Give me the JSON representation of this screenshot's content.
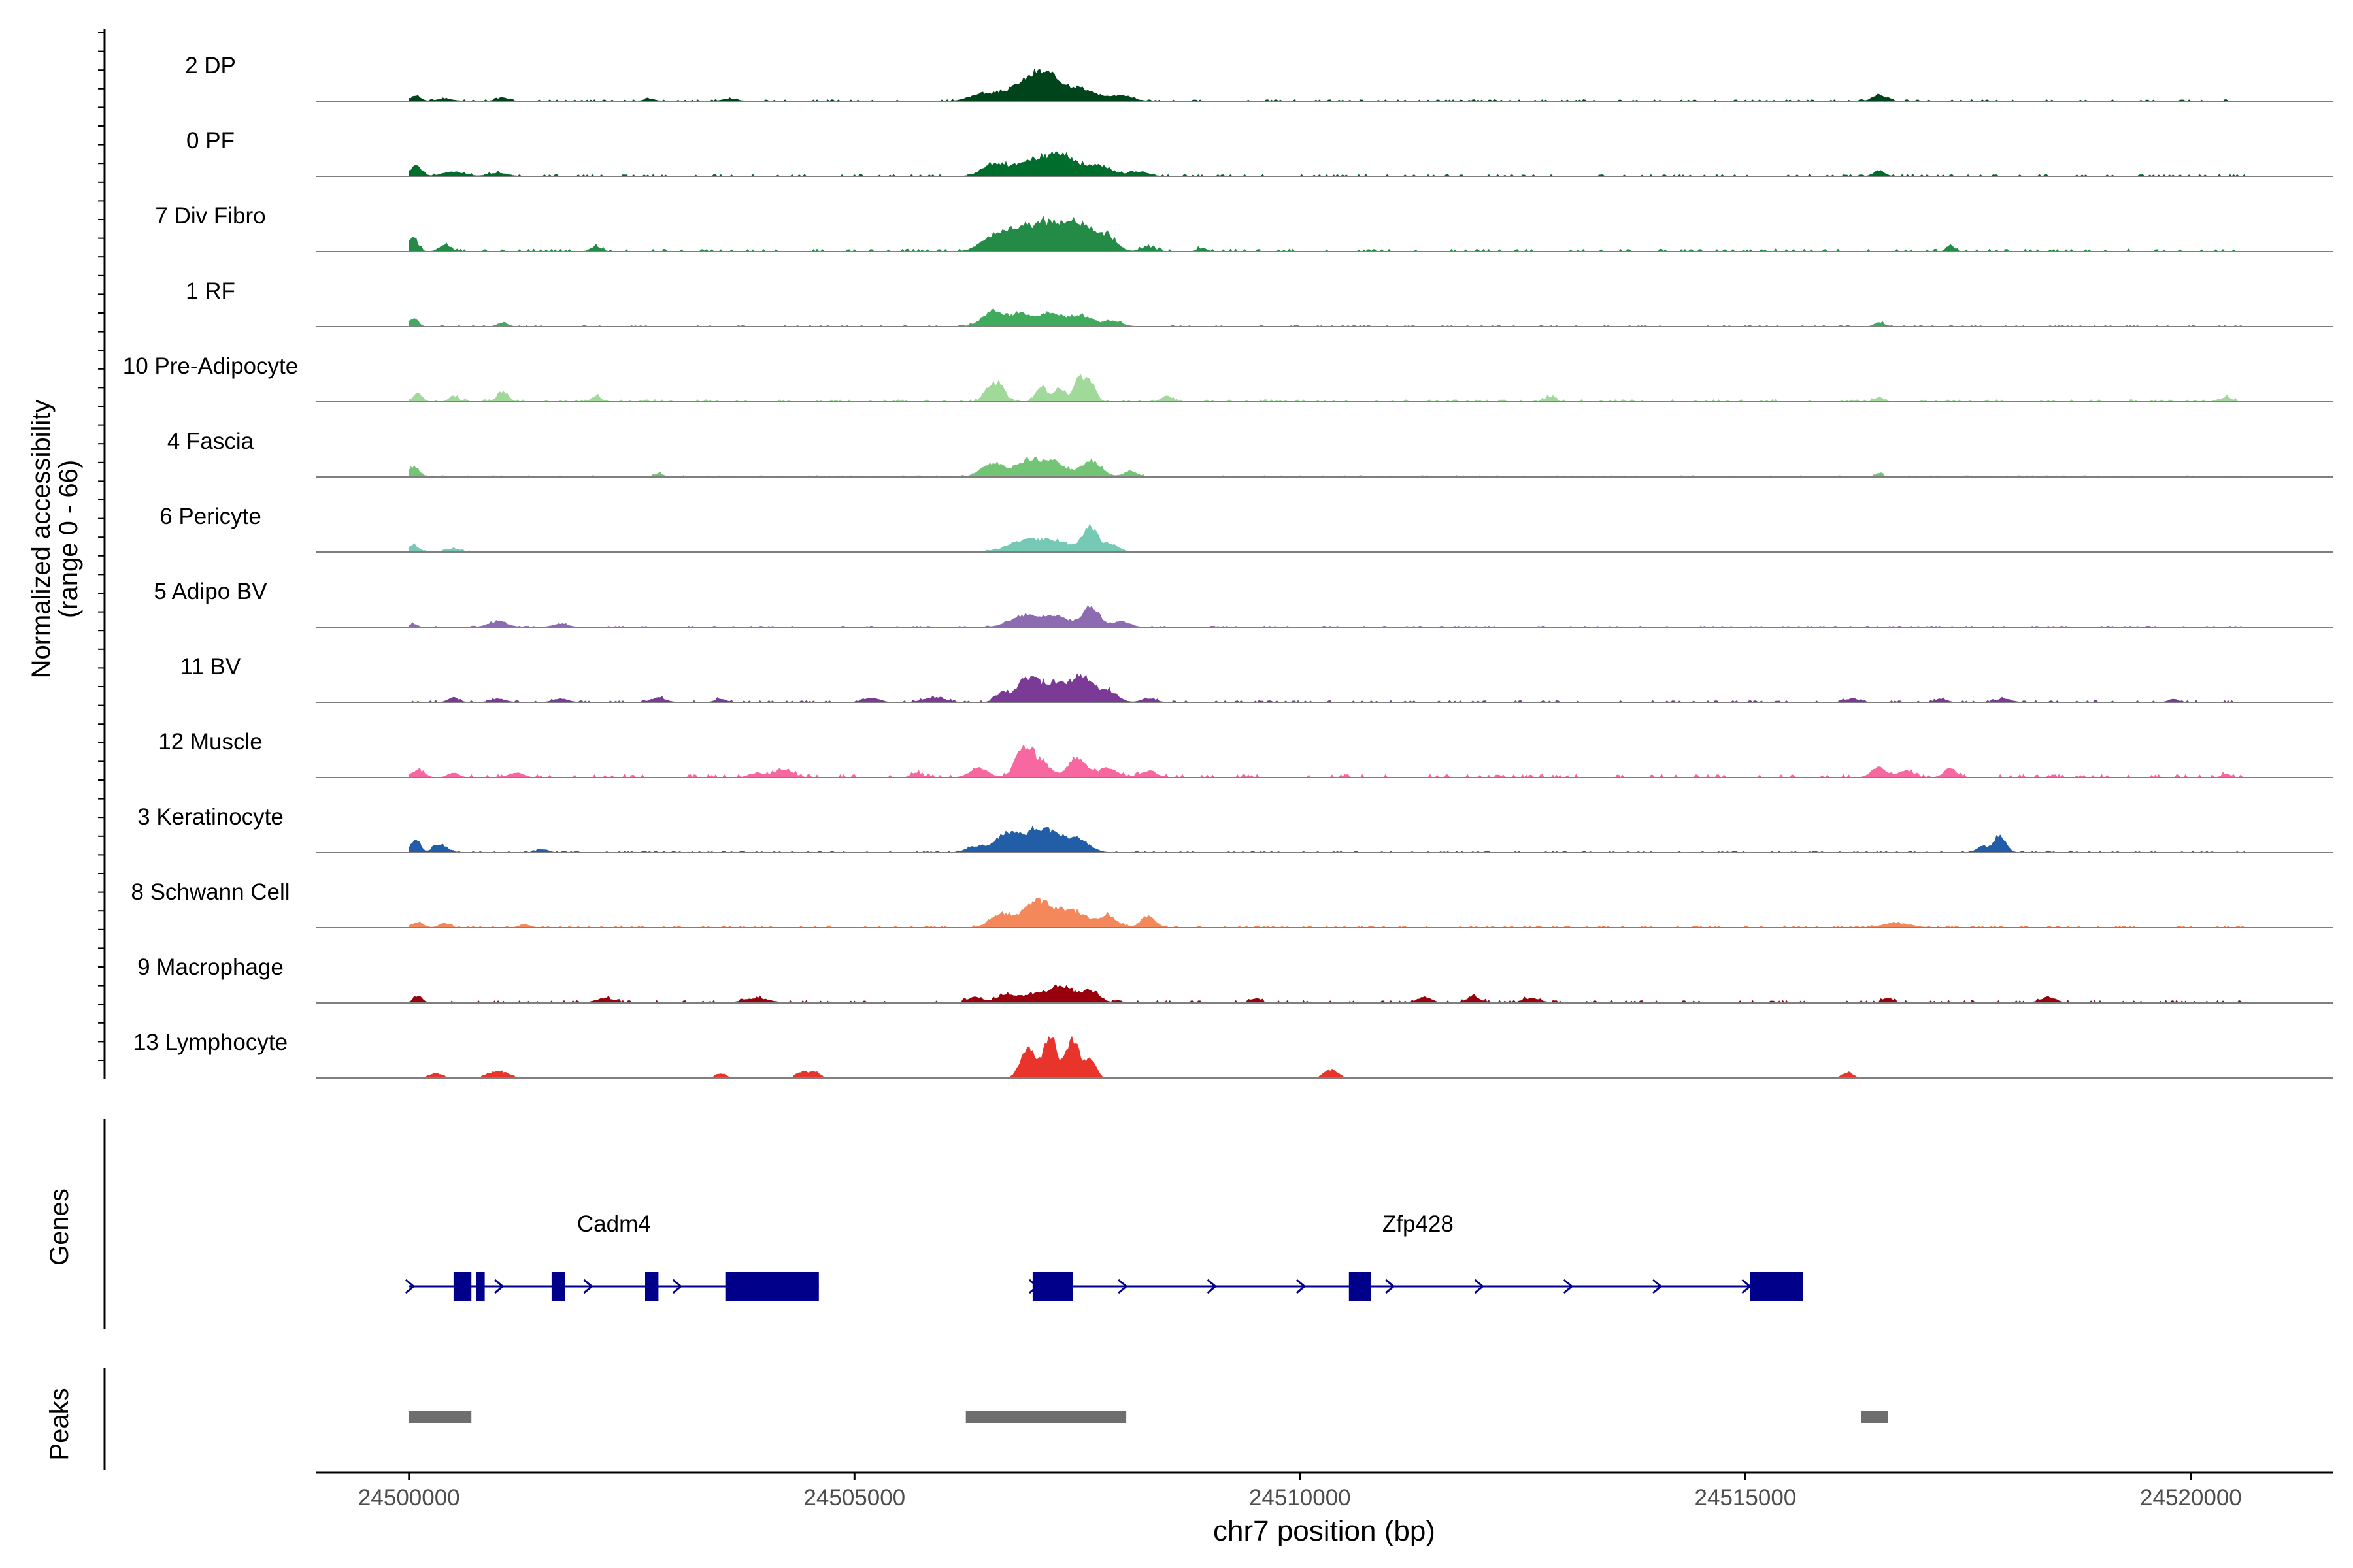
{
  "chart_data": {
    "type": "area",
    "title": "",
    "xlabel": "chr7 position (bp)",
    "ylabel": "Normalized accessibility",
    "ylabel_sub": "(range 0 - 66)",
    "y_range": [
      0,
      66
    ],
    "xlim": [
      24498960,
      24521600
    ],
    "x_ticks": [
      {
        "value": 24500000,
        "label": "24500000"
      },
      {
        "value": 24505000,
        "label": "24505000"
      },
      {
        "value": 24510000,
        "label": "24510000"
      },
      {
        "value": 24515000,
        "label": "24515000"
      },
      {
        "value": 24520000,
        "label": "24520000"
      }
    ],
    "track_labels": {
      "genes": "Genes",
      "peaks": "Peaks"
    },
    "series": [
      {
        "name": "2 DP",
        "color": "#00441b",
        "peaks": [
          [
            24500080,
            50,
            5
          ],
          [
            24500400,
            90,
            2
          ],
          [
            24501050,
            70,
            3
          ],
          [
            24502700,
            60,
            2
          ],
          [
            24503600,
            80,
            2
          ],
          [
            24506400,
            120,
            5
          ],
          [
            24506900,
            250,
            12
          ],
          [
            24507150,
            180,
            18
          ],
          [
            24507550,
            160,
            10
          ],
          [
            24508000,
            120,
            5
          ],
          [
            24516500,
            70,
            6
          ]
        ],
        "noise": 1.2
      },
      {
        "name": "0 PF",
        "color": "#006d2c",
        "peaks": [
          [
            24500080,
            60,
            10
          ],
          [
            24500500,
            120,
            4
          ],
          [
            24501000,
            100,
            3
          ],
          [
            24506550,
            120,
            10
          ],
          [
            24507000,
            220,
            14
          ],
          [
            24507350,
            160,
            14
          ],
          [
            24507750,
            150,
            9
          ],
          [
            24508200,
            100,
            4
          ],
          [
            24516500,
            60,
            5
          ]
        ],
        "noise": 1.5
      },
      {
        "name": "7 Div Fibro",
        "color": "#238b45",
        "peaks": [
          [
            24500050,
            50,
            12
          ],
          [
            24500400,
            60,
            6
          ],
          [
            24502100,
            60,
            4
          ],
          [
            24506550,
            140,
            12
          ],
          [
            24506850,
            160,
            18
          ],
          [
            24507200,
            170,
            24
          ],
          [
            24507550,
            140,
            22
          ],
          [
            24507850,
            100,
            12
          ],
          [
            24508300,
            80,
            4
          ],
          [
            24508900,
            50,
            3
          ],
          [
            24517300,
            40,
            6
          ]
        ],
        "noise": 2
      },
      {
        "name": "1 RF",
        "color": "#41ab5d",
        "peaks": [
          [
            24500050,
            50,
            7
          ],
          [
            24501050,
            60,
            3
          ],
          [
            24506550,
            120,
            13
          ],
          [
            24506850,
            120,
            11
          ],
          [
            24507200,
            140,
            12
          ],
          [
            24507550,
            120,
            10
          ],
          [
            24507900,
            100,
            5
          ],
          [
            24516500,
            50,
            4
          ]
        ],
        "noise": 1.2
      },
      {
        "name": "10 Pre-Adipocyte",
        "color": "#a1d99b",
        "peaks": [
          [
            24500100,
            50,
            7
          ],
          [
            24500500,
            50,
            5
          ],
          [
            24501050,
            60,
            9
          ],
          [
            24502100,
            50,
            5
          ],
          [
            24506500,
            60,
            11
          ],
          [
            24506630,
            60,
            16
          ],
          [
            24507100,
            60,
            14
          ],
          [
            24507300,
            60,
            12
          ],
          [
            24507520,
            60,
            21
          ],
          [
            24507650,
            60,
            16
          ],
          [
            24508500,
            60,
            5
          ],
          [
            24512800,
            60,
            4
          ],
          [
            24516500,
            50,
            4
          ],
          [
            24520400,
            60,
            4
          ]
        ],
        "noise": 1.8
      },
      {
        "name": "4 Fascia",
        "color": "#74c476",
        "peaks": [
          [
            24500050,
            60,
            9
          ],
          [
            24502800,
            50,
            3
          ],
          [
            24506550,
            120,
            12
          ],
          [
            24506950,
            140,
            15
          ],
          [
            24507250,
            120,
            12
          ],
          [
            24507650,
            120,
            14
          ],
          [
            24508100,
            80,
            4
          ],
          [
            24516500,
            40,
            3
          ]
        ],
        "noise": 1.2
      },
      {
        "name": "6 Pericyte",
        "color": "#76c9b5",
        "peaks": [
          [
            24500050,
            60,
            6
          ],
          [
            24500500,
            80,
            3
          ],
          [
            24506900,
            180,
            10
          ],
          [
            24507250,
            160,
            9
          ],
          [
            24507650,
            90,
            22
          ],
          [
            24507900,
            80,
            6
          ]
        ],
        "noise": 0.9
      },
      {
        "name": "5 Adipo BV",
        "color": "#8c6bb1",
        "peaks": [
          [
            24500050,
            40,
            3
          ],
          [
            24501000,
            100,
            5
          ],
          [
            24501700,
            80,
            3
          ],
          [
            24506900,
            150,
            10
          ],
          [
            24507250,
            130,
            10
          ],
          [
            24507650,
            100,
            18
          ],
          [
            24508000,
            90,
            5
          ]
        ],
        "noise": 0.9
      },
      {
        "name": "11 BV",
        "color": "#7a3a96",
        "peaks": [
          [
            24500500,
            60,
            4
          ],
          [
            24501000,
            80,
            3
          ],
          [
            24501700,
            80,
            3
          ],
          [
            24502800,
            80,
            4
          ],
          [
            24503500,
            60,
            3
          ],
          [
            24505200,
            80,
            4
          ],
          [
            24505900,
            120,
            4
          ],
          [
            24506650,
            70,
            8
          ],
          [
            24506950,
            120,
            22
          ],
          [
            24507250,
            120,
            16
          ],
          [
            24507550,
            120,
            22
          ],
          [
            24507850,
            100,
            10
          ],
          [
            24508300,
            80,
            3
          ],
          [
            24516200,
            80,
            3
          ],
          [
            24517200,
            60,
            3
          ],
          [
            24517900,
            80,
            3
          ],
          [
            24519800,
            50,
            3
          ]
        ],
        "noise": 1.4
      },
      {
        "name": "12 Muscle",
        "color": "#f768a1",
        "peaks": [
          [
            24500100,
            70,
            6
          ],
          [
            24500500,
            60,
            4
          ],
          [
            24501200,
            80,
            4
          ],
          [
            24503900,
            80,
            4
          ],
          [
            24504200,
            100,
            7
          ],
          [
            24505700,
            60,
            4
          ],
          [
            24506400,
            100,
            8
          ],
          [
            24506900,
            90,
            26
          ],
          [
            24507100,
            90,
            14
          ],
          [
            24507500,
            110,
            16
          ],
          [
            24507850,
            100,
            8
          ],
          [
            24508300,
            90,
            6
          ],
          [
            24516500,
            80,
            9
          ],
          [
            24516800,
            80,
            6
          ],
          [
            24517300,
            70,
            8
          ],
          [
            24520400,
            50,
            3
          ]
        ],
        "noise": 2.5
      },
      {
        "name": "3 Keratinocyte",
        "color": "#225ea8",
        "peaks": [
          [
            24500070,
            50,
            12
          ],
          [
            24500350,
            80,
            7
          ],
          [
            24501500,
            60,
            3
          ],
          [
            24506350,
            100,
            5
          ],
          [
            24506700,
            130,
            15
          ],
          [
            24507100,
            180,
            22
          ],
          [
            24507500,
            130,
            11
          ],
          [
            24517850,
            70,
            14
          ],
          [
            24517650,
            60,
            5
          ]
        ],
        "noise": 1.2
      },
      {
        "name": "8 Schwann Cell",
        "color": "#f4885a",
        "peaks": [
          [
            24500100,
            60,
            5
          ],
          [
            24500400,
            60,
            4
          ],
          [
            24501300,
            60,
            3
          ],
          [
            24506650,
            120,
            12
          ],
          [
            24507050,
            150,
            24
          ],
          [
            24507450,
            160,
            15
          ],
          [
            24507850,
            100,
            10
          ],
          [
            24508300,
            80,
            10
          ],
          [
            24516700,
            150,
            4
          ]
        ],
        "noise": 1.5
      },
      {
        "name": "9 Macrophage",
        "color": "#99000d",
        "peaks": [
          [
            24500100,
            50,
            6
          ],
          [
            24502200,
            100,
            4
          ],
          [
            24503900,
            140,
            4
          ],
          [
            24506350,
            80,
            5
          ],
          [
            24506700,
            120,
            6
          ],
          [
            24507050,
            150,
            8
          ],
          [
            24507350,
            120,
            14
          ],
          [
            24507650,
            100,
            10
          ],
          [
            24509500,
            60,
            4
          ],
          [
            24511400,
            80,
            5
          ],
          [
            24511950,
            80,
            5
          ],
          [
            24512600,
            100,
            4
          ],
          [
            24516600,
            60,
            4
          ],
          [
            24518400,
            90,
            5
          ]
        ],
        "noise": 2
      },
      {
        "name": "13 Lymphocyte",
        "color": "#e8342a",
        "peaks": [
          [
            24500300,
            80,
            4
          ],
          [
            24501000,
            120,
            6
          ],
          [
            24503500,
            60,
            4
          ],
          [
            24504400,
            60,
            5
          ],
          [
            24504550,
            60,
            6
          ],
          [
            24506950,
            80,
            28
          ],
          [
            24507200,
            70,
            40
          ],
          [
            24507450,
            70,
            36
          ],
          [
            24507650,
            60,
            16
          ],
          [
            24510350,
            80,
            7
          ],
          [
            24516150,
            60,
            5
          ]
        ],
        "noise": 2.2,
        "sparse": true
      }
    ],
    "genes": [
      {
        "name": "Cadm4",
        "start": 24500000,
        "end": 24504600,
        "strand": "+",
        "exons": [
          [
            24500500,
            24500700
          ],
          [
            24500750,
            24500850
          ],
          [
            24501600,
            24501750
          ],
          [
            24502650,
            24502800
          ],
          [
            24503550,
            24504600
          ]
        ]
      },
      {
        "name": "Zfp428",
        "start": 24507000,
        "end": 24515650,
        "strand": "+",
        "exons": [
          [
            24507000,
            24507450
          ],
          [
            24510550,
            24510800
          ],
          [
            24515050,
            24515650
          ]
        ]
      }
    ],
    "peaks": [
      [
        24500000,
        24500700
      ],
      [
        24506250,
        24508050
      ],
      [
        24516300,
        24516600
      ]
    ]
  }
}
